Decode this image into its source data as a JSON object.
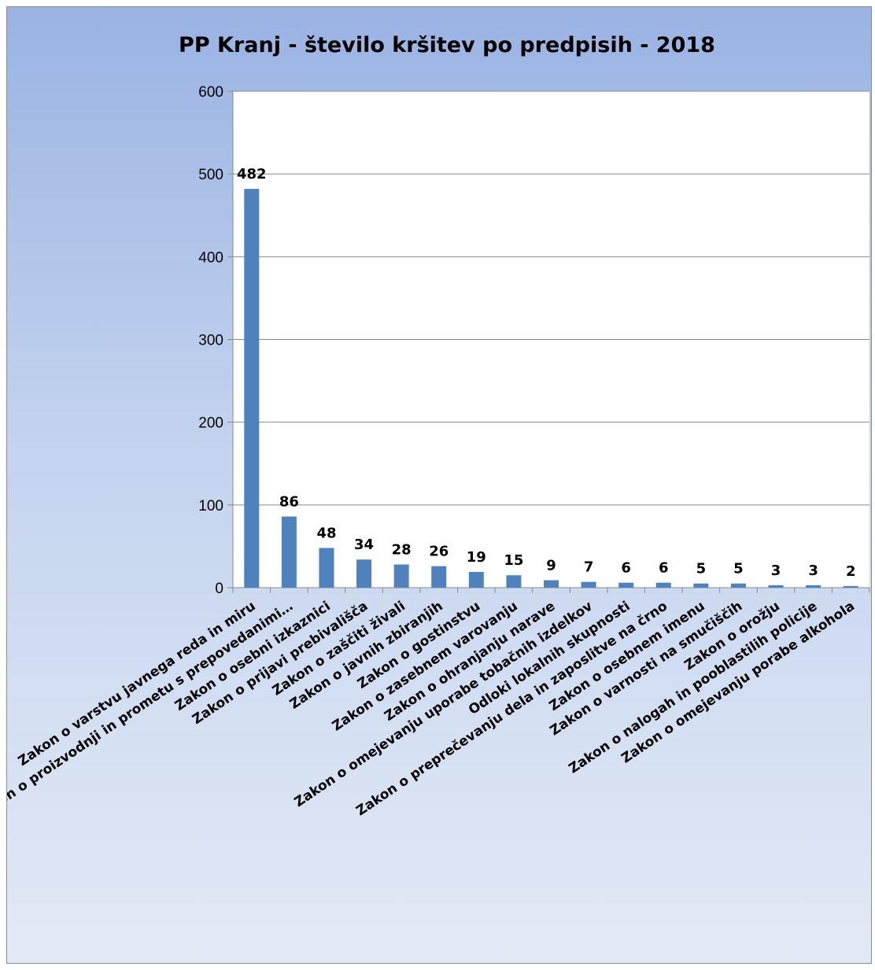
{
  "chart_data": {
    "type": "bar",
    "title": "PP Kranj - število kršitev po predpisih - 2018",
    "xlabel": "",
    "ylabel": "",
    "ylim": [
      0,
      600
    ],
    "yticks": [
      0,
      100,
      200,
      300,
      400,
      500,
      600
    ],
    "grid": true,
    "legend": "none",
    "bar_color": "#4f81bd",
    "categories": [
      "Zakon o varstvu javnega reda in miru",
      "Zakon o proizvodnji in prometu s prepovedanimi…",
      "Zakon o osebni izkaznici",
      "Zakon o prijavi prebivališča",
      "Zakon o zaščiti živali",
      "Zakon o javnih zbiranjih",
      "Zakon o gostinstvu",
      "Zakon o zasebnem varovanju",
      "Zakon o ohranjanju narave",
      "Zakon o omejevanju uporabe tobačnih izdelkov",
      "Odloki lokalnih skupnosti",
      "Zakon o preprečevanju dela in zaposlitve na črno",
      "Zakon o osebnem imenu",
      "Zakon o varnosti na smučiščih",
      "Zakon o orožju",
      "Zakon o nalogah in pooblastilih policije",
      "Zakon o omejevanju porabe alkohola"
    ],
    "values": [
      482,
      86,
      48,
      34,
      28,
      26,
      19,
      15,
      9,
      7,
      6,
      6,
      5,
      5,
      3,
      3,
      2
    ]
  }
}
